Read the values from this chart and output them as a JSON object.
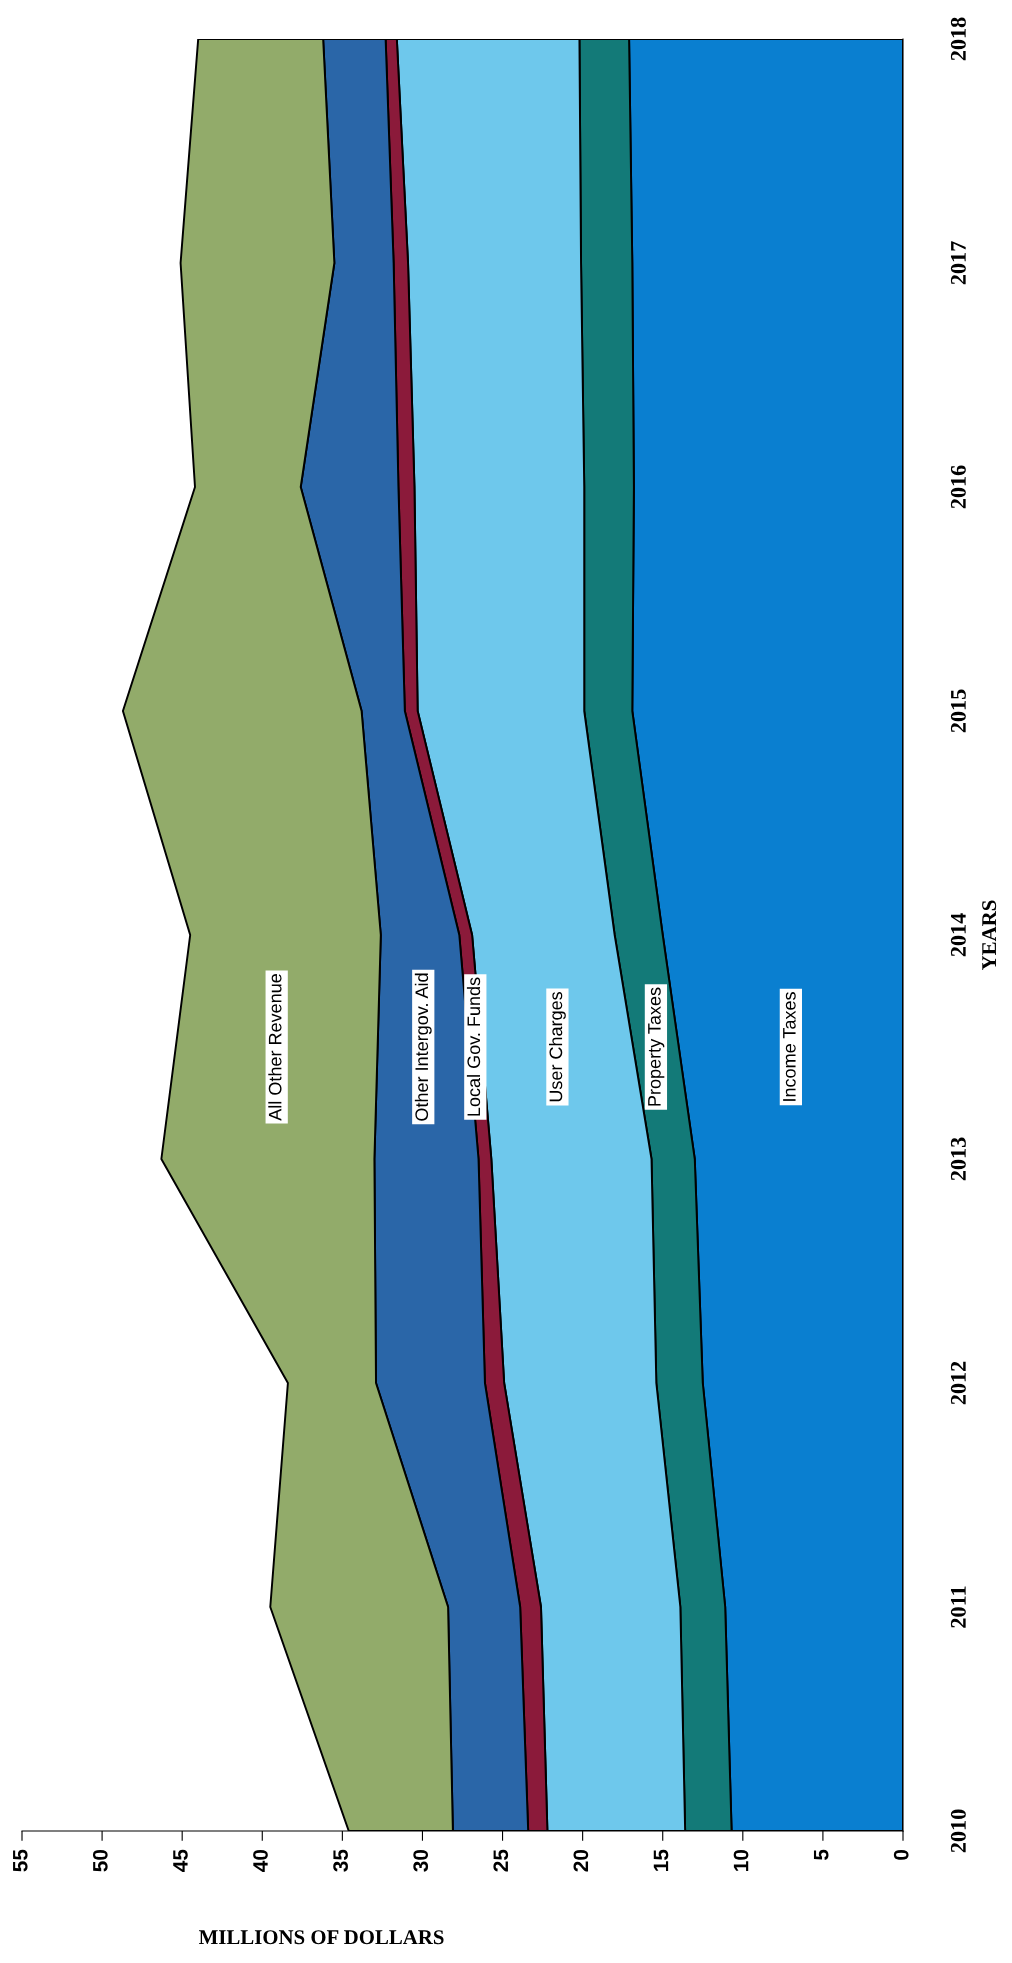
{
  "chart_data": {
    "type": "area",
    "stacked": true,
    "orientation": "horizontal",
    "xlabel": "MILLIONS OF DOLLARS",
    "ylabel": "YEARS",
    "categories": [
      "2018",
      "2017",
      "2016",
      "2015",
      "2014",
      "2013",
      "2012",
      "2011",
      "2010"
    ],
    "xlim": [
      55,
      0
    ],
    "xticks": [
      0,
      5,
      10,
      15,
      20,
      25,
      30,
      35,
      40,
      45,
      50,
      55
    ],
    "grid": false,
    "legend": false,
    "series": [
      {
        "name": "Income Taxes",
        "color": "#0a7fd0",
        "values": [
          17.1,
          16.9,
          16.8,
          16.9,
          15.0,
          13.0,
          12.5,
          11.1,
          10.7
        ]
      },
      {
        "name": "Property Taxes",
        "color": "#137a78",
        "values": [
          3.1,
          3.2,
          3.1,
          3.0,
          3.0,
          2.7,
          2.9,
          2.8,
          2.9
        ]
      },
      {
        "name": "User Charges",
        "color": "#6ec8ec",
        "values": [
          11.4,
          10.8,
          10.6,
          10.4,
          8.9,
          10.0,
          9.5,
          8.7,
          8.6
        ]
      },
      {
        "name": "Local Gov. Funds",
        "color": "#8b1a3a",
        "values": [
          0.7,
          0.9,
          1.0,
          0.8,
          0.8,
          0.8,
          1.2,
          1.3,
          1.2
        ]
      },
      {
        "name": "Other Intergov. Aid",
        "color": "#2a66a8",
        "values": [
          3.9,
          3.7,
          6.1,
          2.7,
          4.9,
          6.5,
          6.8,
          4.5,
          4.7
        ]
      },
      {
        "name": "All Other Revenue",
        "color": "#92ab6a",
        "values": [
          7.8,
          9.6,
          6.6,
          14.9,
          11.9,
          13.3,
          5.5,
          11.1,
          6.5
        ]
      }
    ]
  }
}
